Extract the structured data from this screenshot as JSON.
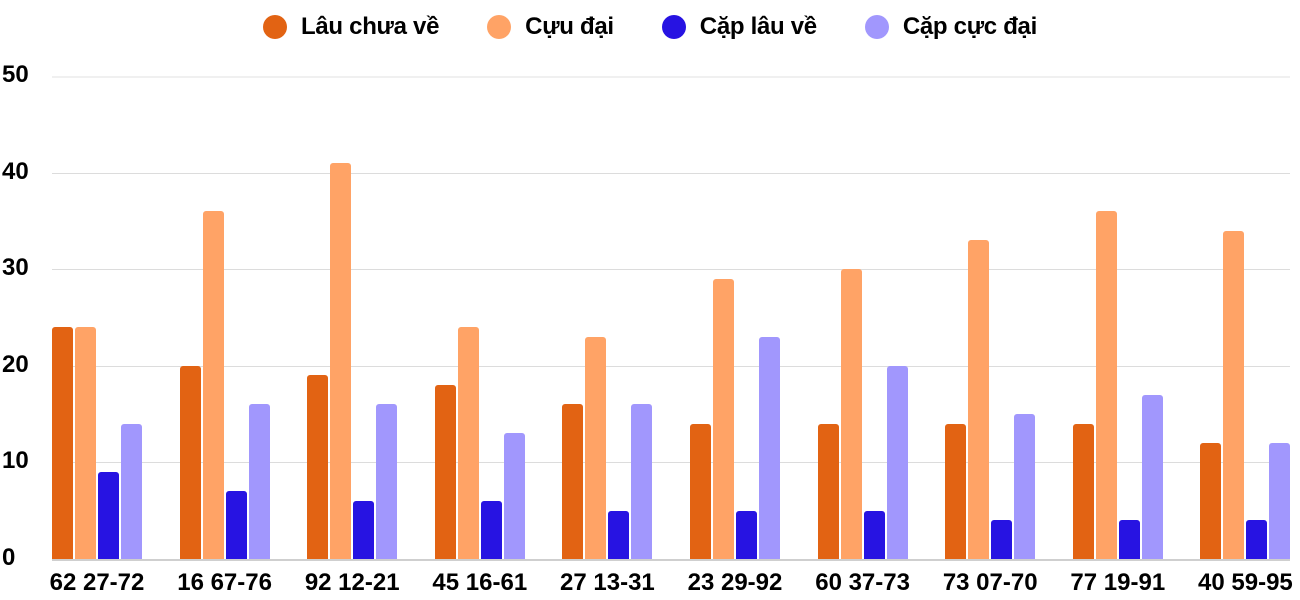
{
  "legend": [
    {
      "label": "Lâu chưa về",
      "color": "#E26313"
    },
    {
      "label": "Cựu đại",
      "color": "#FFA366"
    },
    {
      "label": "Cặp lâu về",
      "color": "#2713E2"
    },
    {
      "label": "Cặp cực đại",
      "color": "#A197FD"
    }
  ],
  "y_axis": {
    "ticks": [
      "50",
      "40",
      "30",
      "20",
      "10",
      "0"
    ]
  },
  "x_axis": {
    "ticks": [
      "62 27-72",
      "16 67-76",
      "92 12-21",
      "45 16-61",
      "27 13-31",
      "23 29-92",
      "60 37-73",
      "73 07-70",
      "77 19-91",
      "40 59-95"
    ]
  },
  "chart_data": {
    "type": "bar",
    "title": "",
    "xlabel": "",
    "ylabel": "",
    "ylim": [
      0,
      50
    ],
    "yticks": [
      0,
      10,
      20,
      30,
      40,
      50
    ],
    "grid": true,
    "legend_position": "top",
    "categories": [
      "62 27-72",
      "16 67-76",
      "92 12-21",
      "45 16-61",
      "27 13-31",
      "23 29-92",
      "60 37-73",
      "73 07-70",
      "77 19-91",
      "40 59-95"
    ],
    "series": [
      {
        "name": "Lâu chưa về",
        "color": "#E26313",
        "values": [
          24,
          20,
          19,
          18,
          16,
          14,
          14,
          14,
          14,
          12
        ]
      },
      {
        "name": "Cựu đại",
        "color": "#FFA366",
        "values": [
          24,
          36,
          41,
          24,
          23,
          29,
          30,
          33,
          36,
          34
        ]
      },
      {
        "name": "Cặp lâu về",
        "color": "#2713E2",
        "values": [
          9,
          7,
          6,
          6,
          5,
          5,
          5,
          4,
          4,
          4
        ]
      },
      {
        "name": "Cặp cực đại",
        "color": "#A197FD",
        "values": [
          14,
          16,
          16,
          13,
          16,
          23,
          20,
          15,
          17,
          12
        ]
      }
    ]
  }
}
